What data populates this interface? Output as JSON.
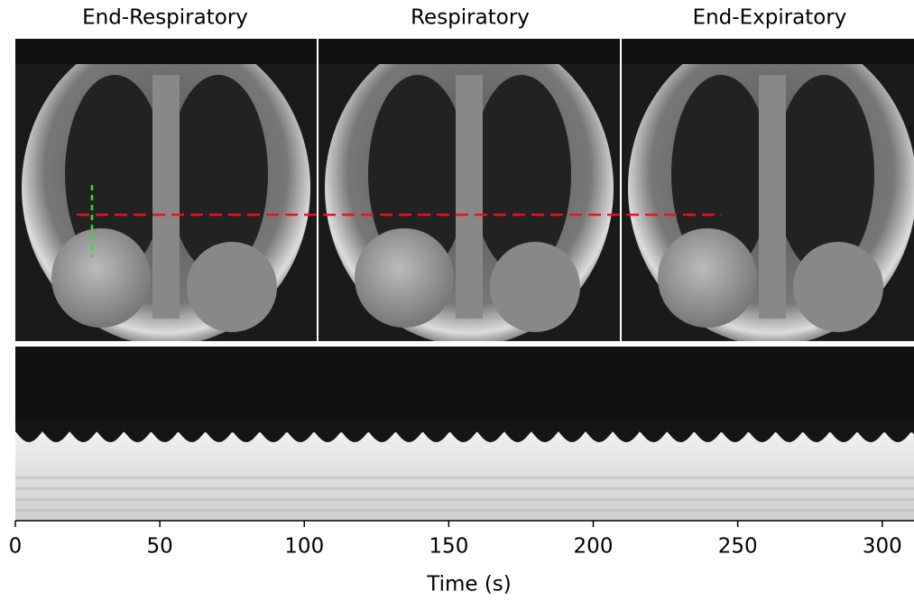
{
  "panels": [
    {
      "title": "End-Respiratory"
    },
    {
      "title": "Respiratory"
    },
    {
      "title": "End-Expiratory"
    }
  ],
  "chart_data": {
    "type": "mmode",
    "xlabel": "Time (s)",
    "xlim": [
      0,
      311
    ],
    "xticks": [
      0,
      50,
      100,
      150,
      200,
      250,
      300
    ]
  }
}
